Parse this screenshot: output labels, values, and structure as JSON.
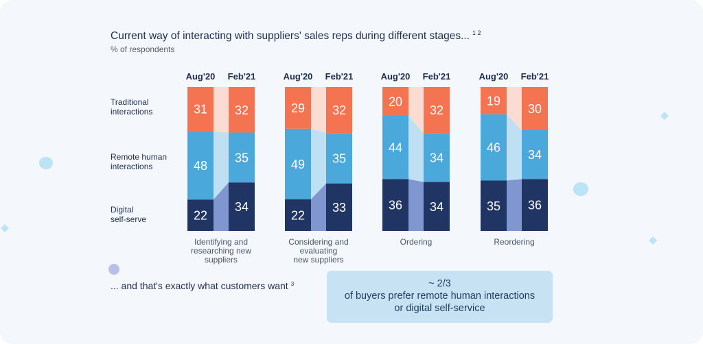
{
  "title": "Current way of interacting with suppliers' sales reps during different stages...",
  "title_footnote": "1 2",
  "subtitle": "% of respondents",
  "row_labels": [
    "Traditional\ninteractions",
    "Remote human\ninteractions",
    "Digital\nself-serve"
  ],
  "footer": {
    "text": "... and that's exactly what customers want",
    "footnote": "3"
  },
  "callout": {
    "line1": "~ 2/3",
    "line2": "of buyers prefer remote human interactions",
    "line3": "or digital self-service"
  },
  "colors": {
    "traditional": "#f47452",
    "remote": "#4aa8db",
    "digital": "#203563",
    "traditional_link": "#fbdcd2",
    "remote_link": "#bfe0f3",
    "digital_link": "#7f96d0",
    "decor_light": "#bce3f6",
    "decor_purple": "#b6c0ea"
  },
  "chart_data": {
    "type": "bar",
    "stacked": true,
    "periods": [
      "Aug'20",
      "Feb'21"
    ],
    "categories": [
      "Identifying and researching new suppliers",
      "Considering and evaluating new suppliers",
      "Ordering",
      "Reordering"
    ],
    "category_labels": [
      "Identifying and\nresearching new\nsuppliers",
      "Considering and\nevaluating\nnew suppliers",
      "Ordering",
      "Reordering"
    ],
    "series": [
      {
        "name": "Traditional interactions",
        "values": [
          [
            31,
            32
          ],
          [
            29,
            32
          ],
          [
            20,
            32
          ],
          [
            19,
            30
          ]
        ]
      },
      {
        "name": "Remote human interactions",
        "values": [
          [
            48,
            35
          ],
          [
            49,
            35
          ],
          [
            44,
            34
          ],
          [
            46,
            34
          ]
        ]
      },
      {
        "name": "Digital self-serve",
        "values": [
          [
            22,
            34
          ],
          [
            22,
            33
          ],
          [
            36,
            34
          ],
          [
            35,
            36
          ]
        ]
      }
    ]
  }
}
